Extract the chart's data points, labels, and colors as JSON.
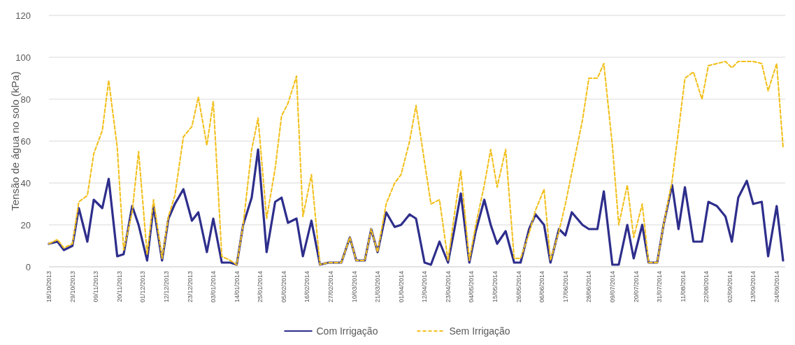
{
  "chart_data": {
    "type": "line",
    "ylabel": "Tensão de água no solo (kPa)",
    "x": [
      "2013-10-18",
      "2013-10-22",
      "2013-10-25",
      "2013-10-29",
      "2013-11-01",
      "2013-11-05",
      "2013-11-08",
      "2013-11-12",
      "2013-11-15",
      "2013-11-19",
      "2013-11-22",
      "2013-11-26",
      "2013-11-29",
      "2013-12-03",
      "2013-12-06",
      "2013-12-10",
      "2013-12-13",
      "2013-12-16",
      "2013-12-20",
      "2013-12-24",
      "2013-12-27",
      "2013-12-31",
      "2014-01-03",
      "2014-01-07",
      "2014-01-11",
      "2014-01-14",
      "2014-01-17",
      "2014-01-21",
      "2014-01-24",
      "2014-01-28",
      "2014-02-01",
      "2014-02-04",
      "2014-02-07",
      "2014-02-11",
      "2014-02-14",
      "2014-02-18",
      "2014-02-22",
      "2014-02-26",
      "2014-03-01",
      "2014-03-04",
      "2014-03-08",
      "2014-03-11",
      "2014-03-15",
      "2014-03-18",
      "2014-03-21",
      "2014-03-25",
      "2014-03-29",
      "2014-04-01",
      "2014-04-05",
      "2014-04-08",
      "2014-04-12",
      "2014-04-15",
      "2014-04-19",
      "2014-04-23",
      "2014-04-26",
      "2014-04-29",
      "2014-05-03",
      "2014-05-06",
      "2014-05-10",
      "2014-05-13",
      "2014-05-16",
      "2014-05-20",
      "2014-05-24",
      "2014-05-27",
      "2014-05-31",
      "2014-06-03",
      "2014-06-07",
      "2014-06-10",
      "2014-06-14",
      "2014-06-17",
      "2014-06-20",
      "2014-06-25",
      "2014-06-28",
      "2014-07-02",
      "2014-07-05",
      "2014-07-09",
      "2014-07-12",
      "2014-07-16",
      "2014-07-19",
      "2014-07-23",
      "2014-07-26",
      "2014-07-30",
      "2014-08-02",
      "2014-08-06",
      "2014-08-09",
      "2014-08-12",
      "2014-08-16",
      "2014-08-20",
      "2014-08-23",
      "2014-08-27",
      "2014-08-31",
      "2014-09-03",
      "2014-09-06",
      "2014-09-10",
      "2014-09-13",
      "2014-09-17",
      "2014-09-20",
      "2014-09-24",
      "2014-09-27"
    ],
    "series": [
      {
        "name": "Com Irrigação",
        "color": "#2e2e8c",
        "line_style": "solid",
        "values": [
          11,
          12,
          8,
          10,
          28,
          12,
          32,
          28,
          42,
          5,
          6,
          29,
          20,
          3,
          29,
          3,
          23,
          30,
          37,
          22,
          26,
          7,
          23,
          2,
          2,
          1,
          20,
          33,
          56,
          7,
          31,
          33,
          21,
          23,
          5,
          22,
          1,
          2,
          2,
          2,
          14,
          3,
          3,
          18,
          7,
          26,
          19,
          20,
          25,
          23,
          2,
          1,
          12,
          2,
          18,
          35,
          2,
          17,
          32,
          20,
          11,
          17,
          2,
          2,
          18,
          25,
          20,
          2,
          18,
          15,
          26,
          20,
          18,
          18,
          36,
          1,
          1,
          20,
          4,
          20,
          2,
          2,
          20,
          39,
          18,
          38,
          12,
          12,
          31,
          29,
          24,
          12,
          33,
          41,
          30,
          31,
          5,
          29,
          3
        ]
      },
      {
        "name": "Sem Irrigação",
        "color": "#f2c01e",
        "line_style": "dashed",
        "values": [
          11,
          13,
          9,
          11,
          31,
          34,
          54,
          65,
          89,
          57,
          8,
          26,
          55,
          6,
          32,
          4,
          24,
          34,
          62,
          67,
          81,
          58,
          79,
          5,
          3,
          1,
          20,
          56,
          71,
          23,
          47,
          72,
          78,
          91,
          24,
          44,
          1,
          2,
          2,
          2,
          14,
          3,
          3,
          18,
          7,
          30,
          40,
          44,
          60,
          77,
          50,
          30,
          32,
          3,
          25,
          46,
          3,
          20,
          39,
          56,
          38,
          56,
          4,
          4,
          16,
          27,
          37,
          3,
          17,
          30,
          45,
          70,
          90,
          90,
          97,
          58,
          20,
          39,
          14,
          30,
          2,
          2,
          20,
          41,
          65,
          90,
          93,
          80,
          96,
          97,
          98,
          95,
          98,
          98,
          98,
          97,
          84,
          97,
          57
        ]
      }
    ],
    "xlim": [
      "2013-10-18",
      "2014-09-28"
    ],
    "xticks": [
      {
        "value": "2013-10-18",
        "label": "18/10/2013"
      },
      {
        "value": "2013-10-29",
        "label": "29/10/2013"
      },
      {
        "value": "2013-11-09",
        "label": "09/11/2013"
      },
      {
        "value": "2013-11-20",
        "label": "20/11/2013"
      },
      {
        "value": "2013-12-01",
        "label": "01/12/2013"
      },
      {
        "value": "2013-12-12",
        "label": "12/12/2013"
      },
      {
        "value": "2013-12-23",
        "label": "23/12/2013"
      },
      {
        "value": "2014-01-03",
        "label": "03/01/2014"
      },
      {
        "value": "2014-01-14",
        "label": "14/01/2014"
      },
      {
        "value": "2014-01-25",
        "label": "25/01/2014"
      },
      {
        "value": "2014-02-05",
        "label": "05/02/2014"
      },
      {
        "value": "2014-02-16",
        "label": "16/02/2014"
      },
      {
        "value": "2014-02-27",
        "label": "27/02/2014"
      },
      {
        "value": "2014-03-10",
        "label": "10/03/2014"
      },
      {
        "value": "2014-03-21",
        "label": "21/03/2014"
      },
      {
        "value": "2014-04-01",
        "label": "01/04/2014"
      },
      {
        "value": "2014-04-12",
        "label": "12/04/2014"
      },
      {
        "value": "2014-04-23",
        "label": "23/04/2014"
      },
      {
        "value": "2014-05-04",
        "label": "04/05/2014"
      },
      {
        "value": "2014-05-15",
        "label": "15/05/2014"
      },
      {
        "value": "2014-05-26",
        "label": "26/05/2014"
      },
      {
        "value": "2014-06-06",
        "label": "06/06/2014"
      },
      {
        "value": "2014-06-17",
        "label": "17/06/2014"
      },
      {
        "value": "2014-06-28",
        "label": "28/06/2014"
      },
      {
        "value": "2014-07-09",
        "label": "09/07/2014"
      },
      {
        "value": "2014-07-20",
        "label": "20/07/2014"
      },
      {
        "value": "2014-07-31",
        "label": "31/07/2014"
      },
      {
        "value": "2014-08-11",
        "label": "11/08/2014"
      },
      {
        "value": "2014-08-22",
        "label": "22/08/2014"
      },
      {
        "value": "2014-09-02",
        "label": "02/09/2014"
      },
      {
        "value": "2014-09-13",
        "label": "13/09/2014"
      },
      {
        "value": "2014-09-24",
        "label": "24/09/2014"
      }
    ],
    "ylim": [
      0,
      120
    ],
    "yticks": [
      0,
      20,
      40,
      60,
      80,
      100,
      120
    ],
    "grid": "y",
    "legend": "bottom",
    "marker": "none"
  }
}
